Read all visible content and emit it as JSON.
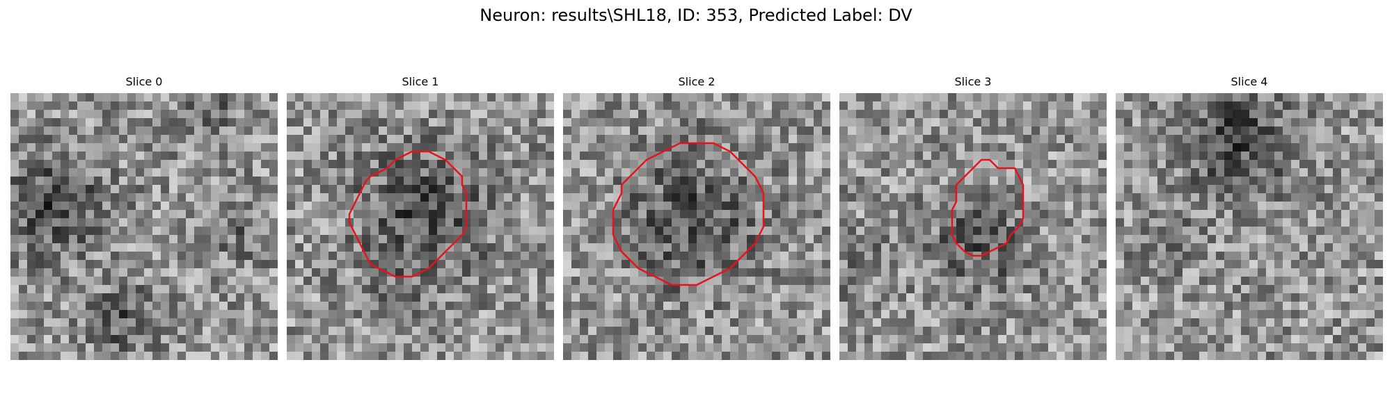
{
  "figure": {
    "title": "Neuron: results\\SHL18, ID: 353, Predicted Label: DV"
  },
  "slices": [
    {
      "title": "Slice 0",
      "has_contour": false
    },
    {
      "title": "Slice 1",
      "has_contour": true
    },
    {
      "title": "Slice 2",
      "has_contour": true
    },
    {
      "title": "Slice 3",
      "has_contour": true
    },
    {
      "title": "Slice 4",
      "has_contour": false
    }
  ],
  "colors": {
    "contour": "#e8121a",
    "background": "#ffffff"
  }
}
